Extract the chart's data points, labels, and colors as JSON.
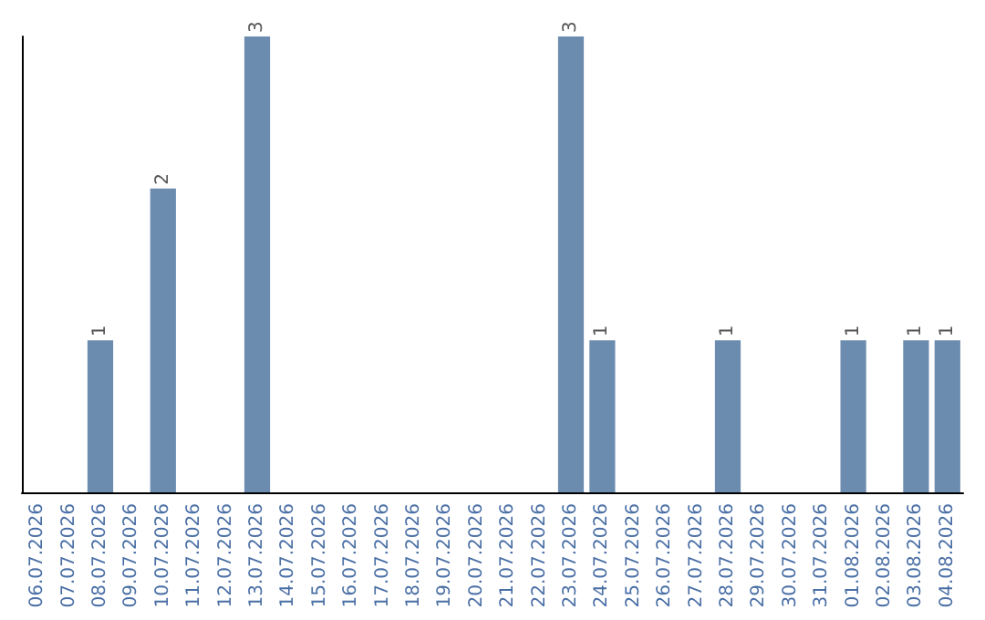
{
  "chart_data": {
    "type": "bar",
    "categories": [
      "06.07.2026",
      "07.07.2026",
      "08.07.2026",
      "09.07.2026",
      "10.07.2026",
      "11.07.2026",
      "12.07.2026",
      "13.07.2026",
      "14.07.2026",
      "15.07.2026",
      "16.07.2026",
      "17.07.2026",
      "18.07.2026",
      "19.07.2026",
      "20.07.2026",
      "21.07.2026",
      "22.07.2026",
      "23.07.2026",
      "24.07.2026",
      "25.07.2026",
      "26.07.2026",
      "27.07.2026",
      "28.07.2026",
      "29.07.2026",
      "30.07.2026",
      "31.07.2026",
      "01.08.2026",
      "02.08.2026",
      "03.08.2026",
      "04.08.2026"
    ],
    "values": [
      0,
      0,
      1,
      0,
      2,
      0,
      0,
      3,
      0,
      0,
      0,
      0,
      0,
      0,
      0,
      0,
      0,
      3,
      1,
      0,
      0,
      0,
      1,
      0,
      0,
      0,
      1,
      0,
      1,
      1
    ],
    "value_labels": [
      null,
      null,
      "1",
      null,
      "2",
      null,
      null,
      "3",
      null,
      null,
      null,
      null,
      null,
      null,
      null,
      null,
      null,
      "3",
      "1",
      null,
      null,
      null,
      "1",
      null,
      null,
      null,
      "1",
      null,
      "1",
      "1"
    ],
    "color": "#6b8cae",
    "grid": false
  }
}
